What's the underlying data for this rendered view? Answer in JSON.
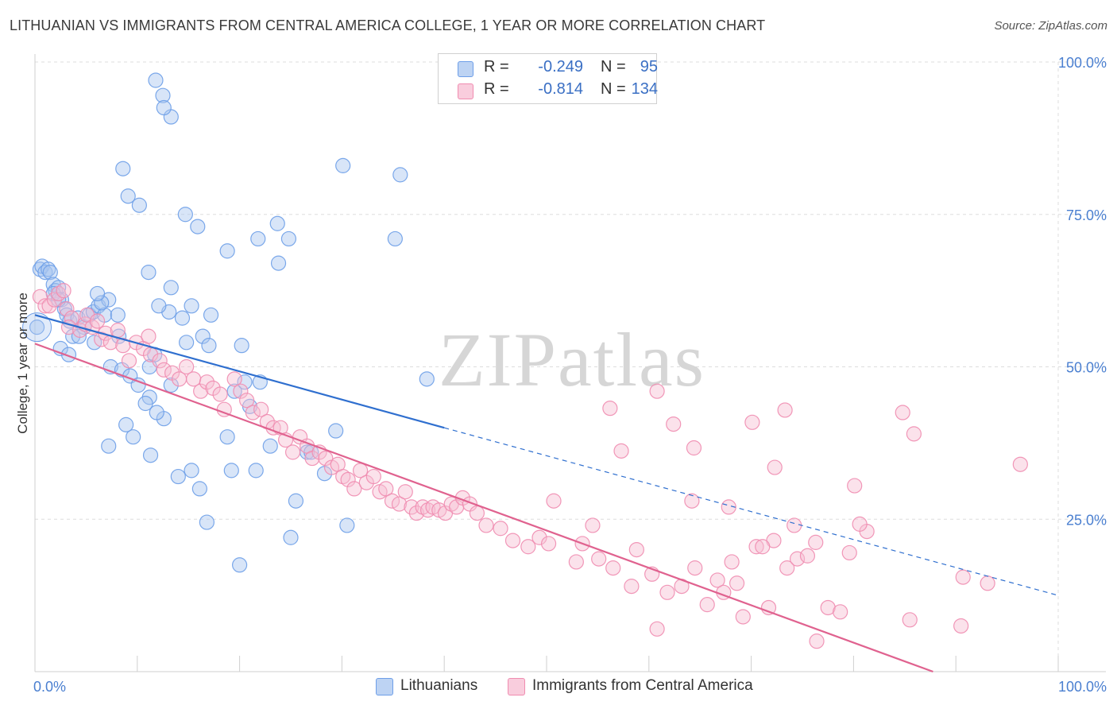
{
  "title": "LITHUANIAN VS IMMIGRANTS FROM CENTRAL AMERICA COLLEGE, 1 YEAR OR MORE CORRELATION CHART",
  "source": "Source: ZipAtlas.com",
  "watermark": "ZIPatlas",
  "colors": {
    "blue": "#6d9ee8",
    "blue_fill": "#a9c6f0",
    "blue_line": "#2f6fcf",
    "pink": "#f08cb0",
    "pink_fill": "#f7bfd2",
    "pink_line": "#e0628f",
    "tick_text": "#4a7fd0",
    "grid": "#dddddd"
  },
  "legend": {
    "rows": [
      {
        "r_label": "R =",
        "r_value": "-0.249",
        "n_label": "N =",
        "n_value": "95"
      },
      {
        "r_label": "R =",
        "r_value": "-0.814",
        "n_label": "N =",
        "n_value": "134"
      }
    ]
  },
  "bottom_legend": [
    {
      "label": "Lithuanians"
    },
    {
      "label": "Immigrants from Central America"
    }
  ],
  "chart_data": {
    "type": "scatter",
    "title": "LITHUANIAN VS IMMIGRANTS FROM CENTRAL AMERICA COLLEGE, 1 YEAR OR MORE CORRELATION CHART",
    "xlabel": "",
    "ylabel": "College, 1 year or more",
    "xlim": [
      0,
      100
    ],
    "ylim": [
      0,
      100
    ],
    "x_tick_labels": [
      {
        "value": 0,
        "label": "0.0%"
      },
      {
        "value": 100,
        "label": "100.0%"
      }
    ],
    "y_tick_labels": [
      {
        "value": 25,
        "label": "25.0%"
      },
      {
        "value": 50,
        "label": "50.0%"
      },
      {
        "value": 75,
        "label": "75.0%"
      },
      {
        "value": 100,
        "label": "100.0%"
      }
    ],
    "grid": true,
    "legend_position": "top-center",
    "series": [
      {
        "name": "Lithuanians",
        "r": -0.249,
        "n": 95,
        "trend": {
          "x0": 0,
          "y0": 58.5,
          "x1": 40,
          "y1": 40.0,
          "dashed_to_x": 100,
          "dashed_to_y": 12.5
        },
        "points": [
          [
            0.2,
            56.5
          ],
          [
            0.5,
            66
          ],
          [
            0.7,
            66.5
          ],
          [
            1,
            65.5
          ],
          [
            1.3,
            66
          ],
          [
            1.5,
            65.5
          ],
          [
            1.8,
            63.5
          ],
          [
            2,
            62.5
          ],
          [
            2.3,
            63
          ],
          [
            2.6,
            61
          ],
          [
            2.9,
            59.5
          ],
          [
            3.1,
            58.5
          ],
          [
            1.8,
            62
          ],
          [
            2.3,
            61
          ],
          [
            3.4,
            57.5
          ],
          [
            4.2,
            58
          ],
          [
            4.8,
            56.5
          ],
          [
            3.7,
            55
          ],
          [
            5.3,
            58.5
          ],
          [
            5.7,
            59
          ],
          [
            6.2,
            60
          ],
          [
            6.8,
            58.5
          ],
          [
            7.2,
            61
          ],
          [
            8.1,
            58.5
          ],
          [
            2.5,
            53
          ],
          [
            3.3,
            52
          ],
          [
            4.3,
            55
          ],
          [
            5.8,
            54
          ],
          [
            6.5,
            60.5
          ],
          [
            6.1,
            62
          ],
          [
            7.4,
            50
          ],
          [
            8.5,
            49.5
          ],
          [
            9.3,
            48.5
          ],
          [
            8.2,
            55
          ],
          [
            10.1,
            47
          ],
          [
            11.2,
            45
          ],
          [
            12.6,
            41.5
          ],
          [
            13.3,
            47
          ],
          [
            10.8,
            44
          ],
          [
            9.6,
            38.5
          ],
          [
            7.2,
            37
          ],
          [
            8.9,
            40.5
          ],
          [
            11.3,
            35.5
          ],
          [
            11.2,
            50
          ],
          [
            11.1,
            65.5
          ],
          [
            14.4,
            58
          ],
          [
            14.8,
            54
          ],
          [
            15.3,
            60
          ],
          [
            13.1,
            59
          ],
          [
            12.1,
            60
          ],
          [
            11.7,
            52
          ],
          [
            11.9,
            42.5
          ],
          [
            13.3,
            63
          ],
          [
            14,
            32
          ],
          [
            15.3,
            33
          ],
          [
            16.1,
            30
          ],
          [
            16.4,
            55
          ],
          [
            17,
            53.5
          ],
          [
            19.5,
            46
          ],
          [
            18.8,
            38.5
          ],
          [
            17.2,
            58.5
          ],
          [
            19.2,
            33
          ],
          [
            20.2,
            53.5
          ],
          [
            20,
            17.5
          ],
          [
            20.5,
            47.5
          ],
          [
            22,
            47.5
          ],
          [
            21.6,
            33
          ],
          [
            23,
            37
          ],
          [
            21,
            43.5
          ],
          [
            16.8,
            24.5
          ],
          [
            25.5,
            28
          ],
          [
            26.6,
            36
          ],
          [
            27,
            36
          ],
          [
            28.3,
            32.5
          ],
          [
            25,
            22
          ],
          [
            29.4,
            39.5
          ],
          [
            30.5,
            24
          ],
          [
            23.7,
            73.5
          ],
          [
            23.8,
            67
          ],
          [
            8.6,
            82.5
          ],
          [
            9.1,
            78
          ],
          [
            10.2,
            76.5
          ],
          [
            14.7,
            75
          ],
          [
            15.9,
            73
          ],
          [
            18.8,
            69
          ],
          [
            21.8,
            71
          ],
          [
            24.8,
            71
          ],
          [
            30.1,
            83
          ],
          [
            35.7,
            81.5
          ],
          [
            35.2,
            71
          ],
          [
            38.3,
            48
          ],
          [
            11.8,
            97
          ],
          [
            12.5,
            94.5
          ],
          [
            13.3,
            91
          ],
          [
            12.6,
            92.5
          ]
        ]
      },
      {
        "name": "Immigrants from Central America",
        "r": -0.814,
        "n": 134,
        "trend": {
          "x0": 0,
          "y0": 53.8,
          "x1": 100,
          "y1": -7.5
        },
        "points": [
          [
            0.5,
            61.5
          ],
          [
            1,
            60
          ],
          [
            1.4,
            60
          ],
          [
            1.9,
            61
          ],
          [
            2.3,
            62
          ],
          [
            2.8,
            62.5
          ],
          [
            3.1,
            59.5
          ],
          [
            3.6,
            58
          ],
          [
            3.3,
            56.5
          ],
          [
            4.4,
            56
          ],
          [
            4.9,
            57
          ],
          [
            5.1,
            58.5
          ],
          [
            5.6,
            56.5
          ],
          [
            6.1,
            57.5
          ],
          [
            6.5,
            54.5
          ],
          [
            6.9,
            55.5
          ],
          [
            7.4,
            54
          ],
          [
            8.1,
            56
          ],
          [
            8.6,
            53.5
          ],
          [
            9.2,
            51
          ],
          [
            9.9,
            54
          ],
          [
            10.6,
            53
          ],
          [
            11.3,
            52
          ],
          [
            11.1,
            55
          ],
          [
            12.2,
            51
          ],
          [
            12.6,
            49.5
          ],
          [
            13.4,
            49
          ],
          [
            14.1,
            48
          ],
          [
            14.8,
            50
          ],
          [
            15.5,
            48
          ],
          [
            16.2,
            46
          ],
          [
            16.8,
            47.5
          ],
          [
            17.4,
            46.5
          ],
          [
            18.1,
            45.5
          ],
          [
            18.5,
            43
          ],
          [
            19.5,
            48
          ],
          [
            20.1,
            46
          ],
          [
            20.7,
            44.5
          ],
          [
            21.3,
            42.5
          ],
          [
            22.1,
            43
          ],
          [
            22.7,
            41
          ],
          [
            23.3,
            40
          ],
          [
            24,
            40
          ],
          [
            24.5,
            38
          ],
          [
            25.2,
            36
          ],
          [
            25.9,
            38.5
          ],
          [
            26.6,
            37
          ],
          [
            27.1,
            35
          ],
          [
            27.8,
            36
          ],
          [
            28.4,
            35
          ],
          [
            29,
            33.5
          ],
          [
            29.6,
            34
          ],
          [
            30.1,
            32
          ],
          [
            30.6,
            31.5
          ],
          [
            31.2,
            30
          ],
          [
            31.8,
            33
          ],
          [
            32.4,
            31
          ],
          [
            33.1,
            32
          ],
          [
            33.7,
            29.5
          ],
          [
            34.3,
            30
          ],
          [
            34.9,
            28
          ],
          [
            35.6,
            27.5
          ],
          [
            36.2,
            29.5
          ],
          [
            36.8,
            27
          ],
          [
            37.3,
            26
          ],
          [
            37.9,
            27
          ],
          [
            38.4,
            26.5
          ],
          [
            38.9,
            27
          ],
          [
            39.5,
            26.5
          ],
          [
            40.1,
            26
          ],
          [
            40.7,
            27.5
          ],
          [
            41.2,
            27
          ],
          [
            41.8,
            28.5
          ],
          [
            42.5,
            27.5
          ],
          [
            43.2,
            26
          ],
          [
            44.1,
            24
          ],
          [
            45.5,
            23.5
          ],
          [
            46.7,
            21.5
          ],
          [
            48.2,
            20.5
          ],
          [
            49.3,
            22
          ],
          [
            50.2,
            21
          ],
          [
            50.7,
            28
          ],
          [
            52.9,
            18
          ],
          [
            53.5,
            21
          ],
          [
            54.5,
            24
          ],
          [
            55.1,
            18.5
          ],
          [
            56.5,
            17
          ],
          [
            58.3,
            14
          ],
          [
            58.8,
            20
          ],
          [
            60.3,
            16
          ],
          [
            60.8,
            7
          ],
          [
            63.2,
            14
          ],
          [
            64.5,
            17
          ],
          [
            65.7,
            11
          ],
          [
            66.7,
            15
          ],
          [
            67.3,
            13
          ],
          [
            68.1,
            18
          ],
          [
            68.6,
            14.5
          ],
          [
            69.2,
            9
          ],
          [
            70.5,
            20.5
          ],
          [
            72.2,
            21.5
          ],
          [
            73.5,
            17
          ],
          [
            74.5,
            18.5
          ],
          [
            75.5,
            19
          ],
          [
            76.4,
            5
          ],
          [
            77.5,
            10.5
          ],
          [
            79.6,
            19.5
          ],
          [
            80.1,
            30.5
          ],
          [
            81.3,
            23
          ],
          [
            84.8,
            42.5
          ],
          [
            85.9,
            39
          ],
          [
            96.3,
            34
          ],
          [
            90.7,
            15.5
          ],
          [
            93.1,
            14.5
          ],
          [
            78.7,
            9.8
          ],
          [
            71.7,
            10.5
          ],
          [
            62.4,
            40.6
          ],
          [
            64.4,
            36.7
          ],
          [
            61.8,
            13
          ],
          [
            71.1,
            20.5
          ],
          [
            76.3,
            21.2
          ],
          [
            80.6,
            24.2
          ],
          [
            67.8,
            27
          ],
          [
            56.2,
            43.2
          ],
          [
            60.8,
            46
          ],
          [
            70.1,
            40.9
          ],
          [
            73.3,
            42.9
          ],
          [
            57.3,
            36.2
          ],
          [
            85.5,
            8.5
          ],
          [
            90.5,
            7.5
          ],
          [
            74.2,
            24
          ],
          [
            64.2,
            28
          ],
          [
            72.3,
            33.5
          ]
        ]
      }
    ]
  }
}
